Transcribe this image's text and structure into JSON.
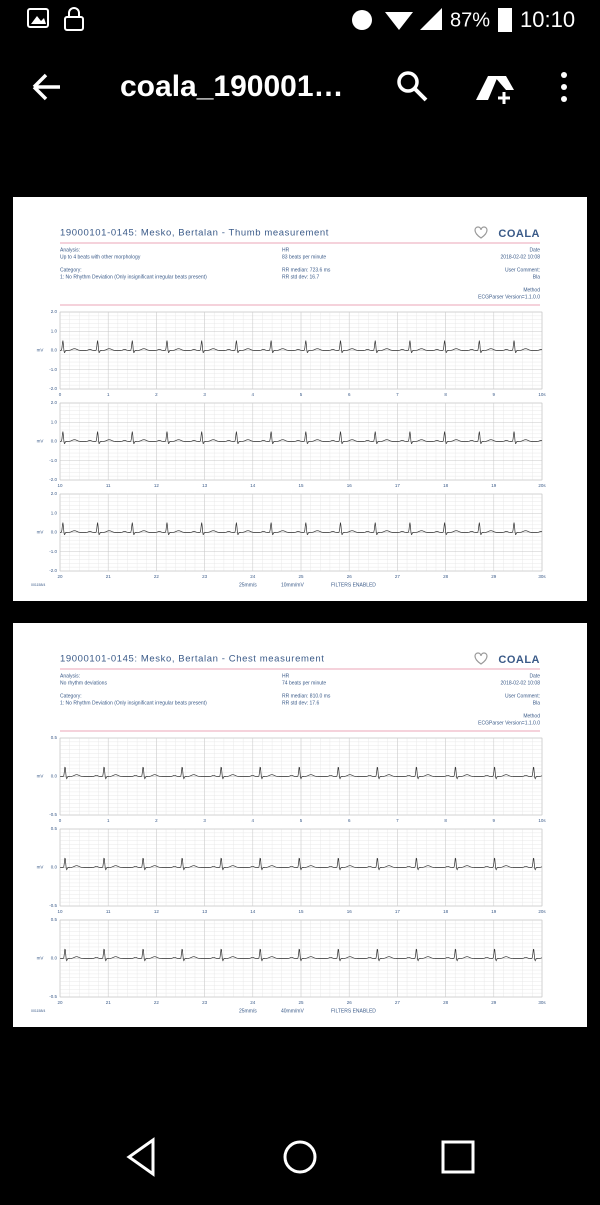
{
  "status_bar": {
    "battery": "87%",
    "time": "10:10"
  },
  "app_bar": {
    "title": "coala_190001…"
  },
  "reports": [
    {
      "title": "19000101-0145: Mesko, Bertalan - Thumb measurement",
      "logo": "COALA",
      "analysis_label": "Analysis:",
      "analysis": "Up to 4 beats with other morphology",
      "category_label": "Category:",
      "category": "1: No Rhythm Deviation (Only insignificant irregular beats present)",
      "hr_label": "HR",
      "hr": "83 beats per minute",
      "rr_median": "RR median: 723.6 ms",
      "rr_std": "RR std dev: 16.7",
      "date_label": "Date",
      "date": "2018-02-02 10:08",
      "comment_label": "User Comment:",
      "comment": "Bla",
      "method_label": "Method",
      "method": "ECGParser Version=1.1.0.0",
      "y_label": "mV",
      "strips": [
        {
          "xlim": [
            0,
            10
          ],
          "xticks": [
            0,
            1,
            2,
            3,
            4,
            5,
            6,
            7,
            8,
            9,
            {
              "value": 10,
              "label": "10s"
            }
          ],
          "ylim": [
            -2,
            2
          ],
          "yticks": [
            {
              "value": 2,
              "label": "2.0"
            },
            {
              "value": 1,
              "label": "1.0"
            },
            {
              "value": 0,
              "label": "0.0"
            },
            {
              "value": -1,
              "label": "-1.0"
            },
            {
              "value": -2,
              "label": "-2.0"
            }
          ]
        },
        {
          "xlim": [
            10,
            20
          ],
          "xticks": [
            10,
            11,
            12,
            13,
            14,
            15,
            16,
            17,
            18,
            19,
            {
              "value": 20,
              "label": "20s"
            }
          ],
          "ylim": [
            -2,
            2
          ],
          "yticks": [
            {
              "value": 2,
              "label": "2.0"
            },
            {
              "value": 1,
              "label": "1.0"
            },
            {
              "value": 0,
              "label": "0.0"
            },
            {
              "value": -1,
              "label": "-1.0"
            },
            {
              "value": -2,
              "label": "-2.0"
            }
          ]
        },
        {
          "xlim": [
            20,
            30
          ],
          "xticks": [
            20,
            21,
            22,
            23,
            24,
            25,
            26,
            27,
            28,
            29,
            {
              "value": 30,
              "label": "30s"
            }
          ],
          "ylim": [
            -2,
            2
          ],
          "yticks": [
            {
              "value": 2,
              "label": "2.0"
            },
            {
              "value": 1,
              "label": "1.0"
            },
            {
              "value": 0,
              "label": "0.0"
            },
            {
              "value": -1,
              "label": "-1.0"
            },
            {
              "value": -2,
              "label": "-2.0"
            }
          ]
        }
      ],
      "footer": {
        "code": "001158/4",
        "speed": "25mm/s",
        "gain": "10mm/mV",
        "filters": "FILTERS ENABLED"
      }
    },
    {
      "title": "19000101-0145: Mesko, Bertalan - Chest measurement",
      "logo": "COALA",
      "analysis_label": "Analysis:",
      "analysis": "No rhythm deviations",
      "category_label": "Category:",
      "category": "1: No Rhythm Deviation (Only insignificant irregular beats present)",
      "hr_label": "HR",
      "hr": "74 beats per minute",
      "rr_median": "RR median: 810.0 ms",
      "rr_std": "RR std dev: 17.6",
      "date_label": "Date",
      "date": "2018-02-02 10:08",
      "comment_label": "User Comment:",
      "comment": "Bla",
      "method_label": "Method",
      "method": "ECGParser Version=1.1.0.0",
      "y_label": "mV",
      "strips": [
        {
          "xlim": [
            0,
            10
          ],
          "xticks": [
            0,
            1,
            2,
            3,
            4,
            5,
            6,
            7,
            8,
            9,
            {
              "value": 10,
              "label": "10s"
            }
          ],
          "ylim": [
            -0.5,
            0.5
          ],
          "yticks": [
            0.5,
            {
              "value": 0,
              "label": "0.0"
            },
            -0.5
          ]
        },
        {
          "xlim": [
            10,
            20
          ],
          "xticks": [
            10,
            11,
            12,
            13,
            14,
            15,
            16,
            17,
            18,
            19,
            {
              "value": 20,
              "label": "20s"
            }
          ],
          "ylim": [
            -0.5,
            0.5
          ],
          "yticks": [
            0.5,
            {
              "value": 0,
              "label": "0.0"
            },
            -0.5
          ]
        },
        {
          "xlim": [
            20,
            30
          ],
          "xticks": [
            20,
            21,
            22,
            23,
            24,
            25,
            26,
            27,
            28,
            29,
            {
              "value": 30,
              "label": "30s"
            }
          ],
          "ylim": [
            -0.5,
            0.5
          ],
          "yticks": [
            0.5,
            {
              "value": 0,
              "label": "0.0"
            },
            -0.5
          ]
        }
      ],
      "footer": {
        "code": "001158/4",
        "speed": "25mm/s",
        "gain": "40mm/mV",
        "filters": "FILTERS ENABLED"
      }
    }
  ]
}
